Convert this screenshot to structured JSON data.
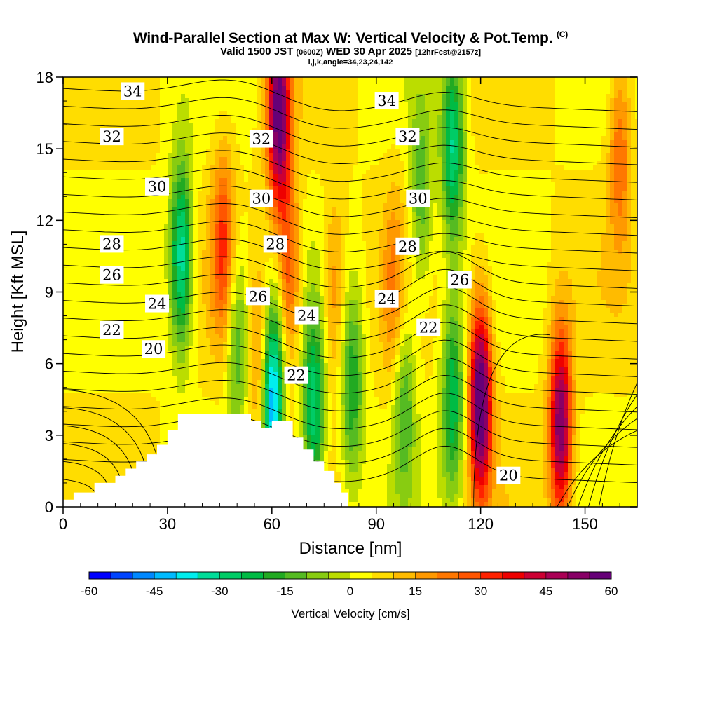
{
  "header": {
    "title": "Wind-Parallel Section at Max W: Vertical Velocity & Pot.Temp.",
    "title_suffix": "(C)",
    "subtitle_pre": "Valid 1500 JST",
    "subtitle_utc": "(0600Z)",
    "subtitle_post": "WED 30 Apr 2025",
    "subtitle_fcst": "[12hrFcst@2157z]",
    "params": "i,j,k,angle=34,23,24,142"
  },
  "chart_data": {
    "type": "heatmap",
    "xlabel": "Distance [nm]",
    "ylabel": "Height [Kft MSL]",
    "xlim": [
      0,
      165
    ],
    "ylim": [
      0,
      18
    ],
    "x_ticks": [
      0,
      30,
      60,
      90,
      120,
      150
    ],
    "y_ticks": [
      0,
      3,
      6,
      9,
      12,
      15,
      18
    ],
    "colorbar": {
      "title": "Vertical Velocity [cm/s]",
      "min": -60,
      "max": 60,
      "step": 5,
      "ticks": [
        -60,
        -45,
        -30,
        -15,
        0,
        15,
        30,
        45,
        60
      ],
      "colors": [
        "#0000ff",
        "#0044ff",
        "#0088ff",
        "#00bbff",
        "#00eeee",
        "#00dd99",
        "#00cc66",
        "#00bb44",
        "#22aa22",
        "#55bb22",
        "#88cc11",
        "#bbdd00",
        "#ffff00",
        "#ffdd00",
        "#ffbb00",
        "#ff9900",
        "#ff7700",
        "#ff5500",
        "#ff2200",
        "#ee0000",
        "#cc0033",
        "#aa0055",
        "#880066",
        "#660077"
      ]
    },
    "velocity_cores": [
      {
        "x": 34,
        "z": 10.5,
        "w": -40
      },
      {
        "x": 46,
        "z": 11,
        "w": 25
      },
      {
        "x": 50,
        "z": 7,
        "w": -20
      },
      {
        "x": 57,
        "z": 6,
        "w": 20
      },
      {
        "x": 60,
        "z": 4.5,
        "w": -55
      },
      {
        "x": 62,
        "z": 16.5,
        "w": 55
      },
      {
        "x": 65,
        "z": 10,
        "w": 25
      },
      {
        "x": 72,
        "z": 4,
        "w": -35
      },
      {
        "x": 78,
        "z": 9,
        "w": 15
      },
      {
        "x": 83,
        "z": 5,
        "w": -25
      },
      {
        "x": 95,
        "z": 9,
        "w": 15
      },
      {
        "x": 98,
        "z": 4.5,
        "w": -20
      },
      {
        "x": 103,
        "z": 13,
        "w": -20
      },
      {
        "x": 112,
        "z": 4.5,
        "w": -30
      },
      {
        "x": 112,
        "z": 15,
        "w": -35
      },
      {
        "x": 120,
        "z": 4.5,
        "w": 60
      },
      {
        "x": 143,
        "z": 3.5,
        "w": 50
      },
      {
        "x": 160,
        "z": 15,
        "w": 20
      }
    ],
    "theta_contours": {
      "units": "C",
      "levels": [
        34,
        32,
        30,
        28,
        26,
        24,
        22,
        20
      ],
      "labels": [
        {
          "text": "34",
          "x": 20,
          "z": 17.4
        },
        {
          "text": "32",
          "x": 14,
          "z": 15.5
        },
        {
          "text": "30",
          "x": 27,
          "z": 13.4
        },
        {
          "text": "28",
          "x": 14,
          "z": 11.0
        },
        {
          "text": "26",
          "x": 14,
          "z": 9.7
        },
        {
          "text": "24",
          "x": 27,
          "z": 8.5
        },
        {
          "text": "22",
          "x": 14,
          "z": 7.4
        },
        {
          "text": "20",
          "x": 26,
          "z": 6.6
        },
        {
          "text": "32",
          "x": 57,
          "z": 15.4
        },
        {
          "text": "30",
          "x": 57,
          "z": 12.9
        },
        {
          "text": "28",
          "x": 61,
          "z": 11.0
        },
        {
          "text": "26",
          "x": 56,
          "z": 8.8
        },
        {
          "text": "24",
          "x": 70,
          "z": 8.0
        },
        {
          "text": "22",
          "x": 67,
          "z": 5.5
        },
        {
          "text": "34",
          "x": 93,
          "z": 17.0
        },
        {
          "text": "32",
          "x": 99,
          "z": 15.5
        },
        {
          "text": "30",
          "x": 102,
          "z": 12.9
        },
        {
          "text": "28",
          "x": 99,
          "z": 10.9
        },
        {
          "text": "24",
          "x": 93,
          "z": 8.7
        },
        {
          "text": "26",
          "x": 114,
          "z": 9.5
        },
        {
          "text": "22",
          "x": 105,
          "z": 7.5
        },
        {
          "text": "20",
          "x": 128,
          "z": 1.3
        }
      ]
    },
    "terrain_outline_nm_kft": [
      [
        0,
        0
      ],
      [
        0,
        0.3
      ],
      [
        3,
        0.3
      ],
      [
        3,
        0.6
      ],
      [
        9,
        0.6
      ],
      [
        9,
        1.0
      ],
      [
        15,
        1.0
      ],
      [
        15,
        1.3
      ],
      [
        18,
        1.3
      ],
      [
        18,
        1.6
      ],
      [
        21,
        1.6
      ],
      [
        21,
        1.9
      ],
      [
        24,
        1.9
      ],
      [
        24,
        2.2
      ],
      [
        27,
        2.2
      ],
      [
        27,
        2.6
      ],
      [
        30,
        2.6
      ],
      [
        30,
        3.2
      ],
      [
        33,
        3.2
      ],
      [
        33,
        3.9
      ],
      [
        54,
        3.9
      ],
      [
        54,
        3.6
      ],
      [
        57,
        3.6
      ],
      [
        57,
        3.3
      ],
      [
        60,
        3.3
      ],
      [
        60,
        3.6
      ],
      [
        66,
        3.6
      ],
      [
        66,
        2.9
      ],
      [
        69,
        2.9
      ],
      [
        69,
        2.4
      ],
      [
        72,
        2.4
      ],
      [
        72,
        1.9
      ],
      [
        75,
        1.9
      ],
      [
        75,
        1.5
      ],
      [
        78,
        1.5
      ],
      [
        78,
        1.0
      ],
      [
        80,
        1.0
      ],
      [
        80,
        0.6
      ],
      [
        82,
        0.6
      ],
      [
        82,
        0
      ]
    ]
  }
}
